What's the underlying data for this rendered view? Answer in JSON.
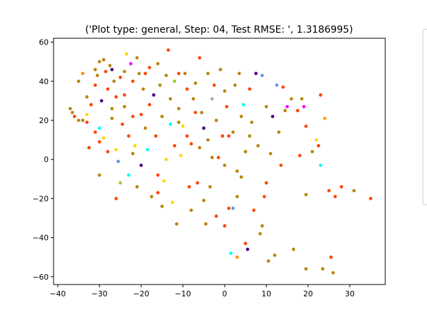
{
  "chart_data": {
    "type": "scatter",
    "title": "('Plot type: general, Step: 04, Test RMSE: ', 1.3186995)",
    "xlabel": "",
    "ylabel": "",
    "xlim": [
      -41,
      38.5
    ],
    "ylim": [
      -64,
      62
    ],
    "xticks": [
      -40,
      -30,
      -20,
      -10,
      0,
      10,
      20,
      30
    ],
    "yticks": [
      -60,
      -40,
      -20,
      0,
      20,
      40,
      60
    ],
    "grid": false,
    "legend": {
      "placement": "right, partially cut off",
      "entries": []
    },
    "colors": {
      "orangered": "#ff4500",
      "darkgoldenrod": "#b8860b",
      "gold": "#ffd700",
      "cyan": "#00ffff",
      "indigo": "#4b0082",
      "magenta": "#ff00ff",
      "cornflowerblue": "#6495ed",
      "yellowgreen": "#9acd32",
      "darkgray": "#a9a9a9"
    },
    "points": [
      {
        "x": -37,
        "y": 26,
        "c": "#b8860b"
      },
      {
        "x": -36,
        "y": 22,
        "c": "#ff4500"
      },
      {
        "x": -36.5,
        "y": 24,
        "c": "#b8860b"
      },
      {
        "x": -35,
        "y": 40,
        "c": "#b8860b"
      },
      {
        "x": -34,
        "y": 44,
        "c": "#ff8c00"
      },
      {
        "x": -34,
        "y": 20,
        "c": "#b8860b"
      },
      {
        "x": -33,
        "y": 23,
        "c": "#ffd700"
      },
      {
        "x": -33,
        "y": 19,
        "c": "#ff4500"
      },
      {
        "x": -32.5,
        "y": 6,
        "c": "#ff4500"
      },
      {
        "x": -32,
        "y": 28,
        "c": "#ff4500"
      },
      {
        "x": -31,
        "y": 46,
        "c": "#b8860b"
      },
      {
        "x": -31,
        "y": 14,
        "c": "#ff4500"
      },
      {
        "x": -31,
        "y": 38,
        "c": "#ff4500"
      },
      {
        "x": -30.5,
        "y": 43,
        "c": "#b8860b"
      },
      {
        "x": -30,
        "y": 50,
        "c": "#b8860b"
      },
      {
        "x": -30,
        "y": 9,
        "c": "#ff4500"
      },
      {
        "x": -30,
        "y": 16,
        "c": "#00ffff"
      },
      {
        "x": -29.5,
        "y": 30,
        "c": "#4b0082"
      },
      {
        "x": -29,
        "y": 51,
        "c": "#b8860b"
      },
      {
        "x": -29,
        "y": 11,
        "c": "#ffd700"
      },
      {
        "x": -28.5,
        "y": 45,
        "c": "#ff4500"
      },
      {
        "x": -28,
        "y": 36,
        "c": "#ff4500"
      },
      {
        "x": -28,
        "y": 4,
        "c": "#ff4500"
      },
      {
        "x": -27.5,
        "y": 48,
        "c": "#b8860b"
      },
      {
        "x": -27,
        "y": 46,
        "c": "#4b0082"
      },
      {
        "x": -27,
        "y": 21,
        "c": "#b8860b"
      },
      {
        "x": -26.5,
        "y": 40,
        "c": "#b8860b"
      },
      {
        "x": -26,
        "y": 5,
        "c": "#ffd700"
      },
      {
        "x": -26,
        "y": 32,
        "c": "#ff4500"
      },
      {
        "x": -25.5,
        "y": -1,
        "c": "#6495ed"
      },
      {
        "x": -25,
        "y": -12,
        "c": "#9acd32"
      },
      {
        "x": -25,
        "y": 42,
        "c": "#ff4500"
      },
      {
        "x": -24.5,
        "y": 18,
        "c": "#ff4500"
      },
      {
        "x": -24,
        "y": 45,
        "c": "#b8860b"
      },
      {
        "x": -24,
        "y": 27,
        "c": "#b8860b"
      },
      {
        "x": -23.5,
        "y": 54,
        "c": "#ffd700"
      },
      {
        "x": -23,
        "y": -8,
        "c": "#00ffff"
      },
      {
        "x": -23,
        "y": 12,
        "c": "#ff4500"
      },
      {
        "x": -22.5,
        "y": 49,
        "c": "#ff00ff"
      },
      {
        "x": -22,
        "y": 3,
        "c": "#b8860b"
      },
      {
        "x": -22,
        "y": 40,
        "c": "#ff4500"
      },
      {
        "x": -21.5,
        "y": 7,
        "c": "#ffd700"
      },
      {
        "x": -21,
        "y": 52,
        "c": "#b8860b"
      },
      {
        "x": -21,
        "y": -14,
        "c": "#b8860b"
      },
      {
        "x": -20.5,
        "y": 44,
        "c": "#b8860b"
      },
      {
        "x": -20,
        "y": 23,
        "c": "#ff4500"
      },
      {
        "x": -20,
        "y": -3,
        "c": "#4b0082"
      },
      {
        "x": -19.5,
        "y": 36,
        "c": "#b8860b"
      },
      {
        "x": -19,
        "y": 16,
        "c": "#b8860b"
      },
      {
        "x": -18.5,
        "y": 5,
        "c": "#00ffff"
      },
      {
        "x": -18,
        "y": 28,
        "c": "#ff4500"
      },
      {
        "x": -18,
        "y": 47,
        "c": "#ff4500"
      },
      {
        "x": -17.5,
        "y": -19,
        "c": "#b8860b"
      },
      {
        "x": -17,
        "y": 33,
        "c": "#4b0082"
      },
      {
        "x": -16.5,
        "y": 12,
        "c": "#ff4500"
      },
      {
        "x": -16,
        "y": 49,
        "c": "#b8860b"
      },
      {
        "x": -16,
        "y": -8,
        "c": "#ff4500"
      },
      {
        "x": -15.5,
        "y": 38,
        "c": "#b8860b"
      },
      {
        "x": -15,
        "y": 22,
        "c": "#b8860b"
      },
      {
        "x": -15,
        "y": -24,
        "c": "#b8860b"
      },
      {
        "x": -14.5,
        "y": -11,
        "c": "#ffd700"
      },
      {
        "x": -14,
        "y": 43,
        "c": "#b8860b"
      },
      {
        "x": -14,
        "y": 0,
        "c": "#ffd700"
      },
      {
        "x": -13.5,
        "y": 56,
        "c": "#ff4500"
      },
      {
        "x": -13,
        "y": 18,
        "c": "#00ffff"
      },
      {
        "x": -12.5,
        "y": -22,
        "c": "#ffd700"
      },
      {
        "x": -12,
        "y": 40,
        "c": "#9acd32"
      },
      {
        "x": -12,
        "y": 7,
        "c": "#ff4500"
      },
      {
        "x": -11.5,
        "y": -33,
        "c": "#b8860b"
      },
      {
        "x": -11,
        "y": 26,
        "c": "#b8860b"
      },
      {
        "x": -11,
        "y": 44,
        "c": "#ff4500"
      },
      {
        "x": -10.5,
        "y": 2,
        "c": "#ffd700"
      },
      {
        "x": -10,
        "y": 17,
        "c": "#ffd700"
      },
      {
        "x": -9.5,
        "y": 44,
        "c": "#b8860b"
      },
      {
        "x": -9,
        "y": 36,
        "c": "#ff4500"
      },
      {
        "x": -8.5,
        "y": -14,
        "c": "#ff4500"
      },
      {
        "x": -8,
        "y": 8,
        "c": "#ff4500"
      },
      {
        "x": -7.5,
        "y": 31,
        "c": "#b8860b"
      },
      {
        "x": -7,
        "y": 39,
        "c": "#b8860b"
      },
      {
        "x": -6.5,
        "y": -12,
        "c": "#ff4500"
      },
      {
        "x": -6,
        "y": 52,
        "c": "#ff4500"
      },
      {
        "x": -6,
        "y": 6,
        "c": "#b8860b"
      },
      {
        "x": -5.5,
        "y": 24,
        "c": "#b8860b"
      },
      {
        "x": -5,
        "y": -21,
        "c": "#b8860b"
      },
      {
        "x": -5,
        "y": 16,
        "c": "#4b0082"
      },
      {
        "x": -4.5,
        "y": -33,
        "c": "#b8860b"
      },
      {
        "x": -4,
        "y": 44,
        "c": "#b8860b"
      },
      {
        "x": -4,
        "y": 10,
        "c": "#b8860b"
      },
      {
        "x": -3.5,
        "y": -14,
        "c": "#b8860b"
      },
      {
        "x": -3,
        "y": 31,
        "c": "#a9a9a9"
      },
      {
        "x": -2.5,
        "y": 38,
        "c": "#ff4500"
      },
      {
        "x": -2,
        "y": -29,
        "c": "#ff4500"
      },
      {
        "x": -2,
        "y": 20,
        "c": "#b8860b"
      },
      {
        "x": -1.5,
        "y": 1,
        "c": "#ff4500"
      },
      {
        "x": -1,
        "y": 46,
        "c": "#b8860b"
      },
      {
        "x": -0.5,
        "y": 12,
        "c": "#ff4500"
      },
      {
        "x": 0,
        "y": -3,
        "c": "#b8860b"
      },
      {
        "x": 0,
        "y": -34,
        "c": "#ff4500"
      },
      {
        "x": 0.5,
        "y": 27,
        "c": "#ff4500"
      },
      {
        "x": 1,
        "y": -25,
        "c": "#ff4500"
      },
      {
        "x": 1.5,
        "y": -48,
        "c": "#00ffff"
      },
      {
        "x": 2,
        "y": 14,
        "c": "#b8860b"
      },
      {
        "x": 2,
        "y": -25,
        "c": "#6495ed"
      },
      {
        "x": 2.5,
        "y": 38,
        "c": "#b8860b"
      },
      {
        "x": 3,
        "y": -6,
        "c": "#b8860b"
      },
      {
        "x": 3,
        "y": -50,
        "c": "#ff8c00"
      },
      {
        "x": 3.5,
        "y": 44,
        "c": "#b8860b"
      },
      {
        "x": 4,
        "y": 22,
        "c": "#b8860b"
      },
      {
        "x": 4,
        "y": -9,
        "c": "#b8860b"
      },
      {
        "x": 4.5,
        "y": 28,
        "c": "#00ffff"
      },
      {
        "x": 5,
        "y": -43,
        "c": "#ff4500"
      },
      {
        "x": 5,
        "y": 4,
        "c": "#b8860b"
      },
      {
        "x": 5.5,
        "y": -46,
        "c": "#4b0082"
      },
      {
        "x": 6,
        "y": 36,
        "c": "#ff4500"
      },
      {
        "x": 6.5,
        "y": 19,
        "c": "#b8860b"
      },
      {
        "x": 7,
        "y": -26,
        "c": "#ff4500"
      },
      {
        "x": 7.5,
        "y": 44,
        "c": "#4b0082"
      },
      {
        "x": 8,
        "y": 7,
        "c": "#b8860b"
      },
      {
        "x": 8.5,
        "y": -38,
        "c": "#b8860b"
      },
      {
        "x": 9,
        "y": 43,
        "c": "#6495ed"
      },
      {
        "x": 9.5,
        "y": -19,
        "c": "#ff4500"
      },
      {
        "x": 10,
        "y": 27,
        "c": "#b8860b"
      },
      {
        "x": 10,
        "y": -12,
        "c": "#ff4500"
      },
      {
        "x": 10.5,
        "y": -52,
        "c": "#b8860b"
      },
      {
        "x": 11,
        "y": 3,
        "c": "#b8860b"
      },
      {
        "x": 11.5,
        "y": 22,
        "c": "#4b0082"
      },
      {
        "x": 12,
        "y": -49,
        "c": "#b8860b"
      },
      {
        "x": 12.5,
        "y": 38,
        "c": "#6495ed"
      },
      {
        "x": 13,
        "y": 14,
        "c": "#b8860b"
      },
      {
        "x": 13.5,
        "y": -3,
        "c": "#ff4500"
      },
      {
        "x": 14,
        "y": 37,
        "c": "#ff4500"
      },
      {
        "x": 14.5,
        "y": 25,
        "c": "#b8860b"
      },
      {
        "x": 15,
        "y": 27,
        "c": "#ff00ff"
      },
      {
        "x": 16,
        "y": 31,
        "c": "#b8860b"
      },
      {
        "x": 16.5,
        "y": -46,
        "c": "#b8860b"
      },
      {
        "x": 17.5,
        "y": 25,
        "c": "#ff4500"
      },
      {
        "x": 18,
        "y": 2,
        "c": "#ff4500"
      },
      {
        "x": 18.5,
        "y": 31,
        "c": "#b8860b"
      },
      {
        "x": 19,
        "y": 27,
        "c": "#ff00ff"
      },
      {
        "x": 19.5,
        "y": -18,
        "c": "#b8860b"
      },
      {
        "x": 19.5,
        "y": 17,
        "c": "#ff4500"
      },
      {
        "x": 19.5,
        "y": -56,
        "c": "#b8860b"
      },
      {
        "x": 21,
        "y": 4,
        "c": "#b8860b"
      },
      {
        "x": 22,
        "y": 10,
        "c": "#ffd700"
      },
      {
        "x": 22.5,
        "y": 7,
        "c": "#ff4500"
      },
      {
        "x": 23,
        "y": -3,
        "c": "#00ffff"
      },
      {
        "x": 23,
        "y": 33,
        "c": "#ff4500"
      },
      {
        "x": 23.5,
        "y": -56,
        "c": "#b8860b"
      },
      {
        "x": 24,
        "y": 21,
        "c": "#ffa500"
      },
      {
        "x": 25,
        "y": -16,
        "c": "#ff4500"
      },
      {
        "x": 25.5,
        "y": -50,
        "c": "#ff4500"
      },
      {
        "x": 26,
        "y": -58,
        "c": "#b8860b"
      },
      {
        "x": 26.5,
        "y": -19,
        "c": "#ff4500"
      },
      {
        "x": 28,
        "y": -14,
        "c": "#ff4500"
      },
      {
        "x": 31,
        "y": -16,
        "c": "#b8860b"
      },
      {
        "x": 35,
        "y": -20,
        "c": "#ff4500"
      },
      {
        "x": -33,
        "y": 32,
        "c": "#b8860b"
      },
      {
        "x": -27,
        "y": 26,
        "c": "#b8860b"
      },
      {
        "x": -22,
        "y": 22,
        "c": "#ff4500"
      },
      {
        "x": -19,
        "y": 44,
        "c": "#ff4500"
      },
      {
        "x": -13,
        "y": 31,
        "c": "#b8860b"
      },
      {
        "x": -9,
        "y": 12,
        "c": "#ff4500"
      },
      {
        "x": -7,
        "y": 24,
        "c": "#ff4500"
      },
      {
        "x": -3,
        "y": 1,
        "c": "#b8860b"
      },
      {
        "x": 1,
        "y": 12,
        "c": "#ff4500"
      },
      {
        "x": 6,
        "y": 12,
        "c": "#b8860b"
      },
      {
        "x": 3,
        "y": -19,
        "c": "#b8860b"
      },
      {
        "x": -26,
        "y": -20,
        "c": "#ff4500"
      },
      {
        "x": -30,
        "y": -8,
        "c": "#b8860b"
      },
      {
        "x": -16,
        "y": -17,
        "c": "#ff4500"
      },
      {
        "x": -8,
        "y": -26,
        "c": "#b8860b"
      },
      {
        "x": 9,
        "y": -34,
        "c": "#b8860b"
      },
      {
        "x": -35,
        "y": 20,
        "c": "#b8860b"
      },
      {
        "x": -24,
        "y": 33,
        "c": "#ff4500"
      },
      {
        "x": -11,
        "y": 19,
        "c": "#b8860b"
      },
      {
        "x": 0,
        "y": 35,
        "c": "#b8860b"
      }
    ]
  }
}
